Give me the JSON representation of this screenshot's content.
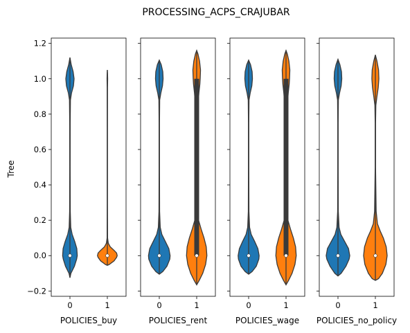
{
  "figure": {
    "title": "PROCESSING_ACPS_CRAJUBAR",
    "ylabel": "Tree"
  },
  "chart_data": {
    "type": "violin",
    "title": "PROCESSING_ACPS_CRAJUBAR",
    "ylabel": "Tree",
    "ylim": [
      -0.23,
      1.23
    ],
    "yticks": [
      -0.2,
      0.0,
      0.2,
      0.4,
      0.6,
      0.8,
      1.0,
      1.2
    ],
    "ytick_labels": [
      "−0.2",
      "0.0",
      "0.2",
      "0.4",
      "0.6",
      "0.8",
      "1.0",
      "1.2"
    ],
    "categories": [
      "0",
      "1"
    ],
    "colors": {
      "0": "#1f77b4",
      "1": "#ff7f0e"
    },
    "shared_y": true,
    "grid": false,
    "panels": [
      {
        "xlabel": "POLICIES_buy",
        "violins": [
          {
            "category": "0",
            "min": -0.125,
            "max": 1.12,
            "q1": 0.0,
            "median": 0.0,
            "q3": 0.0,
            "profile": [
              [
                -0.125,
                0.0
              ],
              [
                -0.1,
                0.06
              ],
              [
                -0.06,
                0.28
              ],
              [
                -0.02,
                0.42
              ],
              [
                0.0,
                0.46
              ],
              [
                0.04,
                0.43
              ],
              [
                0.08,
                0.3
              ],
              [
                0.12,
                0.14
              ],
              [
                0.16,
                0.05
              ],
              [
                0.25,
                0.02
              ],
              [
                0.5,
                0.012
              ],
              [
                0.75,
                0.015
              ],
              [
                0.88,
                0.03
              ],
              [
                0.92,
                0.1
              ],
              [
                0.96,
                0.22
              ],
              [
                1.0,
                0.26
              ],
              [
                1.04,
                0.2
              ],
              [
                1.08,
                0.08
              ],
              [
                1.12,
                0.0
              ]
            ]
          },
          {
            "category": "1",
            "min": -0.055,
            "max": 1.05,
            "q1": 0.0,
            "median": 0.0,
            "q3": 0.0,
            "profile": [
              [
                -0.055,
                0.0
              ],
              [
                -0.05,
                0.12
              ],
              [
                -0.03,
                0.42
              ],
              [
                -0.01,
                0.58
              ],
              [
                0.0,
                0.62
              ],
              [
                0.015,
                0.58
              ],
              [
                0.03,
                0.42
              ],
              [
                0.05,
                0.18
              ],
              [
                0.07,
                0.06
              ],
              [
                0.1,
                0.015
              ],
              [
                0.3,
                0.008
              ],
              [
                0.7,
                0.008
              ],
              [
                0.95,
                0.01
              ],
              [
                1.0,
                0.02
              ],
              [
                1.03,
                0.012
              ],
              [
                1.05,
                0.0
              ]
            ]
          }
        ]
      },
      {
        "xlabel": "POLICIES_rent",
        "violins": [
          {
            "category": "0",
            "min": -0.105,
            "max": 1.105,
            "q1": 0.0,
            "median": 0.0,
            "q3": 0.0,
            "profile": [
              [
                -0.105,
                0.0
              ],
              [
                -0.09,
                0.22
              ],
              [
                -0.06,
                0.48
              ],
              [
                -0.02,
                0.66
              ],
              [
                0.0,
                0.68
              ],
              [
                0.04,
                0.6
              ],
              [
                0.08,
                0.38
              ],
              [
                0.12,
                0.16
              ],
              [
                0.16,
                0.06
              ],
              [
                0.25,
                0.02
              ],
              [
                0.5,
                0.012
              ],
              [
                0.75,
                0.012
              ],
              [
                0.88,
                0.025
              ],
              [
                0.92,
                0.1
              ],
              [
                0.96,
                0.2
              ],
              [
                1.0,
                0.24
              ],
              [
                1.04,
                0.22
              ],
              [
                1.08,
                0.12
              ],
              [
                1.105,
                0.0
              ]
            ]
          },
          {
            "category": "1",
            "min": -0.165,
            "max": 1.16,
            "q1": 0.0,
            "median": 0.0,
            "q3": 1.0,
            "profile": [
              [
                -0.165,
                0.0
              ],
              [
                -0.14,
                0.16
              ],
              [
                -0.1,
                0.38
              ],
              [
                -0.05,
                0.56
              ],
              [
                0.0,
                0.64
              ],
              [
                0.05,
                0.6
              ],
              [
                0.1,
                0.46
              ],
              [
                0.15,
                0.28
              ],
              [
                0.2,
                0.12
              ],
              [
                0.3,
                0.05
              ],
              [
                0.5,
                0.03
              ],
              [
                0.7,
                0.04
              ],
              [
                0.85,
                0.08
              ],
              [
                0.92,
                0.14
              ],
              [
                0.97,
                0.2
              ],
              [
                1.0,
                0.22
              ],
              [
                1.05,
                0.24
              ],
              [
                1.1,
                0.18
              ],
              [
                1.14,
                0.08
              ],
              [
                1.16,
                0.0
              ]
            ]
          }
        ]
      },
      {
        "xlabel": "POLICIES_wage",
        "violins": [
          {
            "category": "0",
            "min": -0.105,
            "max": 1.105,
            "q1": 0.0,
            "median": 0.0,
            "q3": 0.0,
            "profile": [
              [
                -0.105,
                0.0
              ],
              [
                -0.09,
                0.22
              ],
              [
                -0.06,
                0.48
              ],
              [
                -0.02,
                0.64
              ],
              [
                0.0,
                0.66
              ],
              [
                0.04,
                0.58
              ],
              [
                0.08,
                0.38
              ],
              [
                0.12,
                0.16
              ],
              [
                0.16,
                0.06
              ],
              [
                0.25,
                0.02
              ],
              [
                0.5,
                0.012
              ],
              [
                0.75,
                0.012
              ],
              [
                0.88,
                0.025
              ],
              [
                0.92,
                0.1
              ],
              [
                0.96,
                0.2
              ],
              [
                1.0,
                0.24
              ],
              [
                1.04,
                0.22
              ],
              [
                1.08,
                0.12
              ],
              [
                1.105,
                0.0
              ]
            ]
          },
          {
            "category": "1",
            "min": -0.165,
            "max": 1.16,
            "q1": 0.0,
            "median": 0.0,
            "q3": 1.0,
            "profile": [
              [
                -0.165,
                0.0
              ],
              [
                -0.14,
                0.16
              ],
              [
                -0.1,
                0.38
              ],
              [
                -0.05,
                0.56
              ],
              [
                0.0,
                0.64
              ],
              [
                0.05,
                0.6
              ],
              [
                0.1,
                0.46
              ],
              [
                0.15,
                0.28
              ],
              [
                0.2,
                0.12
              ],
              [
                0.3,
                0.05
              ],
              [
                0.5,
                0.03
              ],
              [
                0.7,
                0.04
              ],
              [
                0.85,
                0.08
              ],
              [
                0.92,
                0.14
              ],
              [
                0.97,
                0.2
              ],
              [
                1.0,
                0.22
              ],
              [
                1.05,
                0.24
              ],
              [
                1.1,
                0.18
              ],
              [
                1.14,
                0.08
              ],
              [
                1.16,
                0.0
              ]
            ]
          }
        ]
      },
      {
        "xlabel": "POLICIES_no_policy",
        "violins": [
          {
            "category": "0",
            "min": -0.115,
            "max": 1.11,
            "q1": 0.0,
            "median": 0.0,
            "q3": 0.0,
            "profile": [
              [
                -0.115,
                0.0
              ],
              [
                -0.1,
                0.2
              ],
              [
                -0.06,
                0.5
              ],
              [
                -0.02,
                0.7
              ],
              [
                0.0,
                0.74
              ],
              [
                0.04,
                0.66
              ],
              [
                0.08,
                0.42
              ],
              [
                0.12,
                0.18
              ],
              [
                0.16,
                0.07
              ],
              [
                0.25,
                0.02
              ],
              [
                0.5,
                0.012
              ],
              [
                0.75,
                0.012
              ],
              [
                0.88,
                0.025
              ],
              [
                0.92,
                0.1
              ],
              [
                0.96,
                0.2
              ],
              [
                1.0,
                0.24
              ],
              [
                1.04,
                0.22
              ],
              [
                1.08,
                0.12
              ],
              [
                1.11,
                0.0
              ]
            ]
          },
          {
            "category": "1",
            "min": -0.14,
            "max": 1.135,
            "q1": 0.0,
            "median": 0.0,
            "q3": 0.0,
            "profile": [
              [
                -0.14,
                0.0
              ],
              [
                -0.13,
                0.2
              ],
              [
                -0.1,
                0.44
              ],
              [
                -0.05,
                0.66
              ],
              [
                0.0,
                0.74
              ],
              [
                0.05,
                0.68
              ],
              [
                0.1,
                0.5
              ],
              [
                0.14,
                0.3
              ],
              [
                0.18,
                0.13
              ],
              [
                0.25,
                0.05
              ],
              [
                0.5,
                0.012
              ],
              [
                0.75,
                0.012
              ],
              [
                0.85,
                0.03
              ],
              [
                0.9,
                0.1
              ],
              [
                0.95,
                0.18
              ],
              [
                1.0,
                0.22
              ],
              [
                1.05,
                0.2
              ],
              [
                1.1,
                0.1
              ],
              [
                1.135,
                0.0
              ]
            ]
          }
        ]
      }
    ]
  }
}
